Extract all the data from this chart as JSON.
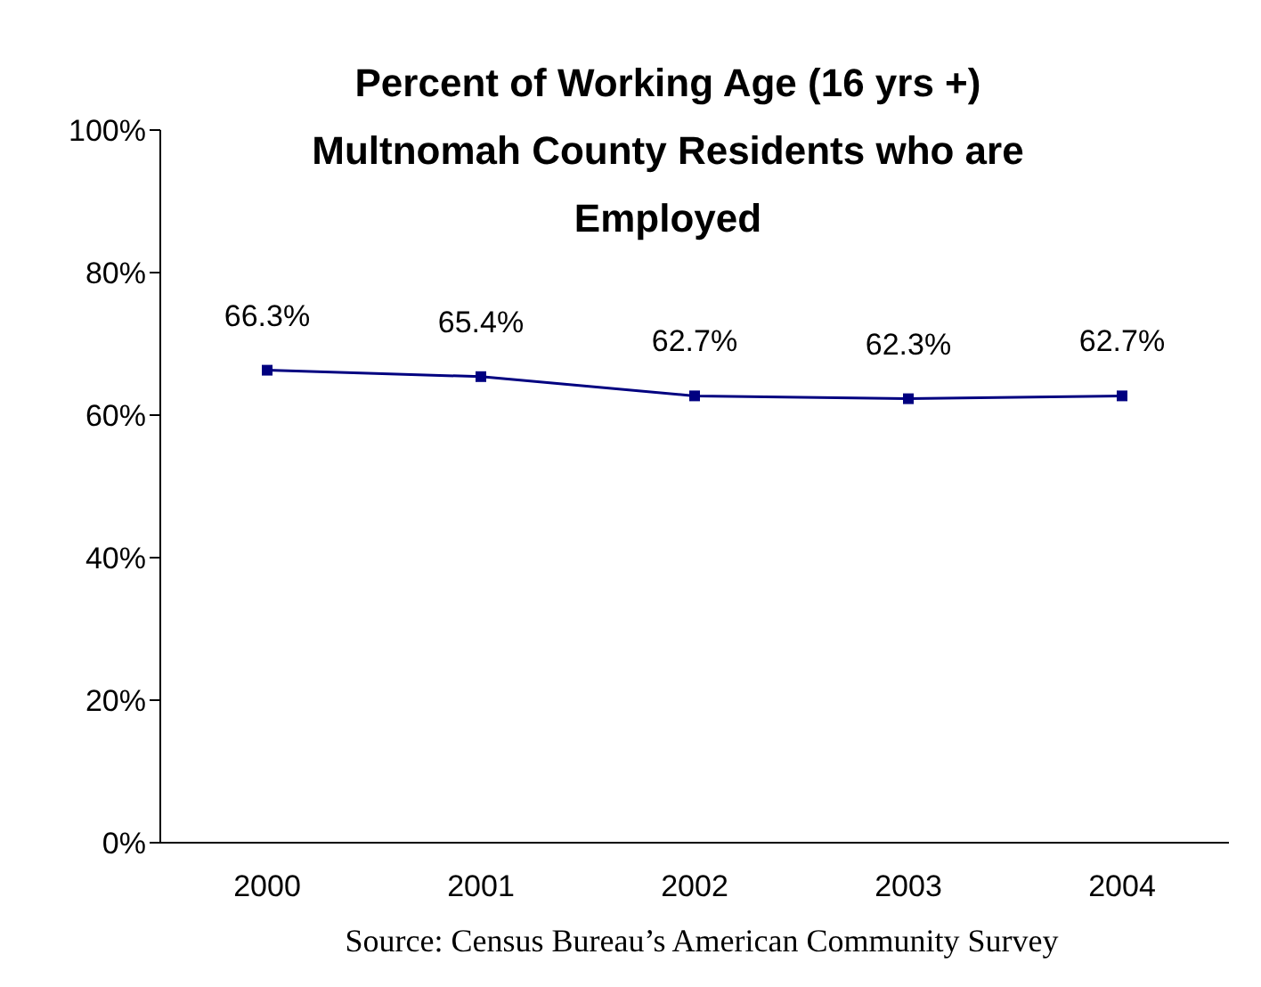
{
  "chart_data": {
    "type": "line",
    "title": "Percent of Working Age (16 yrs +) Multnomah County Residents who are Employed",
    "categories": [
      "2000",
      "2001",
      "2002",
      "2003",
      "2004"
    ],
    "series": [
      {
        "color": "#000080",
        "values": [
          66.3,
          65.4,
          62.7,
          62.3,
          62.7
        ],
        "value_labels": [
          "66.3%",
          "65.4%",
          "62.7%",
          "62.3%",
          "62.7%"
        ]
      }
    ],
    "ylim": [
      0,
      100
    ],
    "yticks": [
      {
        "value": 0,
        "label": "0%"
      },
      {
        "value": 20,
        "label": "20%"
      },
      {
        "value": 40,
        "label": "40%"
      },
      {
        "value": 60,
        "label": "60%"
      },
      {
        "value": 80,
        "label": "80%"
      },
      {
        "value": 100,
        "label": "100%"
      }
    ],
    "grid": false,
    "legend": false,
    "marker": "square",
    "line_style": "solid",
    "annotations": [
      "Source: Census Bureau’s American Community Survey"
    ]
  }
}
